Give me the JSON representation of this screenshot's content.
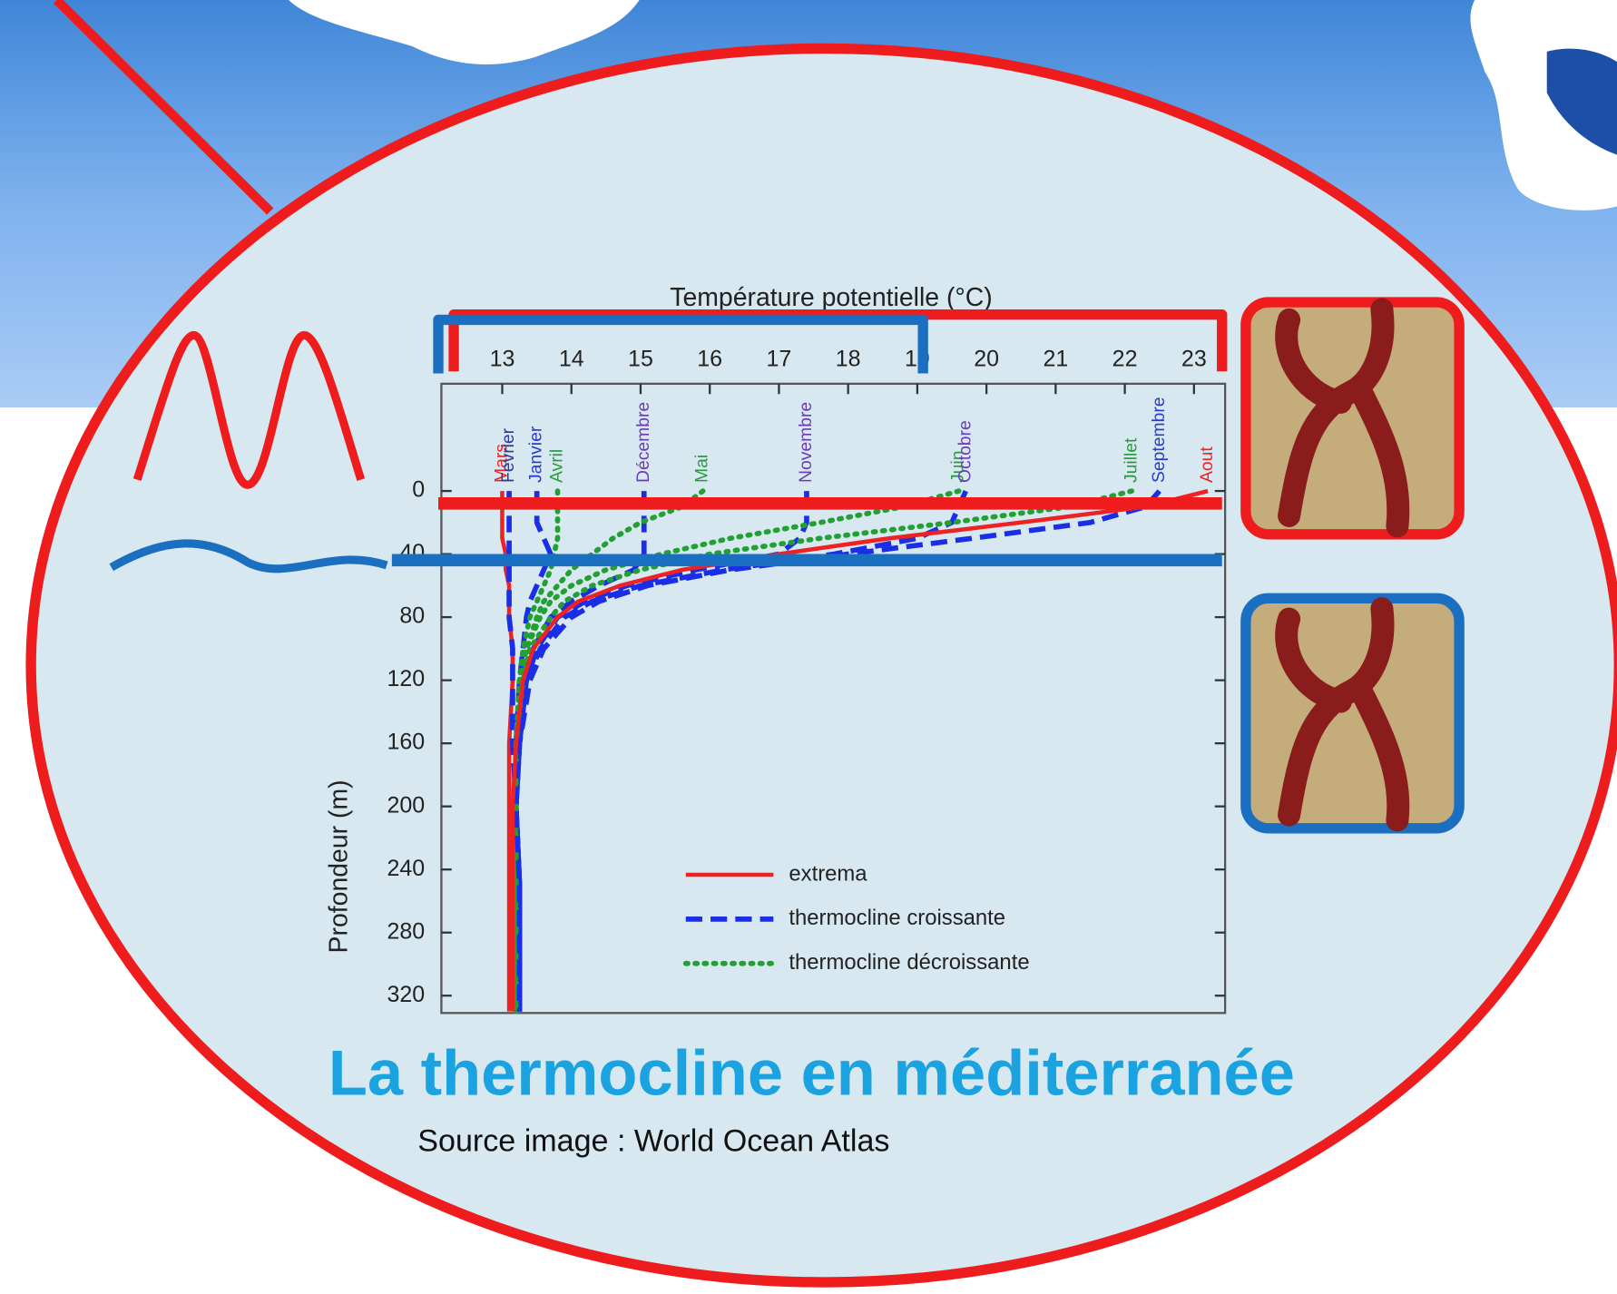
{
  "chart_data": {
    "type": "line",
    "title": "La thermocline en méditerranée",
    "source": "Source image : World Ocean Atlas",
    "x_label": "Température potentielle (°C)",
    "y_label": "Profondeur (m)",
    "xlim": [
      12.12,
      23.45
    ],
    "xticks": [
      13,
      14,
      15,
      16,
      17,
      18,
      19,
      20,
      21,
      22,
      23
    ],
    "ylim": [
      -68,
      331
    ],
    "yticks": [
      0,
      40,
      80,
      120,
      160,
      200,
      240,
      280,
      320
    ],
    "y_inverted": true,
    "depths": [
      0,
      10,
      20,
      30,
      40,
      50,
      60,
      70,
      80,
      100,
      120,
      160,
      200,
      250,
      330
    ],
    "legend": [
      {
        "name": "extrema",
        "color": "#ee2222",
        "dash": "none"
      },
      {
        "name": "thermocline croissante",
        "color": "#1a2ee8",
        "dash": "16,8"
      },
      {
        "name": "thermocline décroissante",
        "color": "#22a033",
        "dash": "2,7"
      }
    ],
    "series": [
      {
        "name": "Mars",
        "group": 0,
        "label_color": "#ee2222",
        "values": [
          13.0,
          13.0,
          13.0,
          13.0,
          13.05,
          13.05,
          13.1,
          13.1,
          13.1,
          13.15,
          13.15,
          13.1,
          13.1,
          13.1,
          13.1
        ]
      },
      {
        "name": "Fevrier",
        "group": 1,
        "label_color": "#2a3a9a",
        "values": [
          13.1,
          13.1,
          13.1,
          13.1,
          13.1,
          13.1,
          13.1,
          13.1,
          13.1,
          13.15,
          13.15,
          13.15,
          13.2,
          13.2,
          13.2
        ]
      },
      {
        "name": "Janvier",
        "group": 1,
        "label_color": "#2a3acc",
        "values": [
          13.5,
          13.5,
          13.5,
          13.6,
          13.7,
          13.6,
          13.5,
          13.4,
          13.35,
          13.3,
          13.25,
          13.2,
          13.2,
          13.25,
          13.25
        ]
      },
      {
        "name": "Avril",
        "group": 2,
        "label_color": "#2a9a40",
        "values": [
          13.8,
          13.8,
          13.8,
          13.8,
          13.75,
          13.7,
          13.6,
          13.5,
          13.4,
          13.3,
          13.25,
          13.2,
          13.2,
          13.2,
          13.2
        ]
      },
      {
        "name": "Décembre",
        "group": 1,
        "label_color": "#6a3ab8",
        "values": [
          15.05,
          15.05,
          15.05,
          15.05,
          15.05,
          14.9,
          14.4,
          14.0,
          13.7,
          13.45,
          13.3,
          13.2,
          13.2,
          13.25,
          13.25
        ]
      },
      {
        "name": "Mai",
        "group": 2,
        "label_color": "#2a9a40",
        "values": [
          15.9,
          15.6,
          15.0,
          14.6,
          14.3,
          14.0,
          13.8,
          13.6,
          13.5,
          13.35,
          13.25,
          13.2,
          13.2,
          13.2,
          13.2
        ]
      },
      {
        "name": "Novembre",
        "group": 1,
        "label_color": "#6a3ab8",
        "values": [
          17.4,
          17.4,
          17.4,
          17.3,
          17.0,
          15.8,
          14.8,
          14.2,
          13.8,
          13.5,
          13.35,
          13.25,
          13.2,
          13.25,
          13.25
        ]
      },
      {
        "name": "Juin",
        "group": 2,
        "label_color": "#2a9a40",
        "values": [
          19.6,
          18.8,
          17.6,
          16.3,
          15.3,
          14.5,
          14.0,
          13.7,
          13.55,
          13.35,
          13.25,
          13.2,
          13.2,
          13.2,
          13.2
        ]
      },
      {
        "name": "Octobre",
        "group": 1,
        "label_color": "#6a3ab8",
        "values": [
          19.7,
          19.6,
          19.5,
          19.0,
          17.8,
          16.2,
          15.0,
          14.3,
          13.9,
          13.55,
          13.35,
          13.25,
          13.2,
          13.25,
          13.25
        ]
      },
      {
        "name": "Juillet",
        "group": 2,
        "label_color": "#2a9a40",
        "values": [
          22.1,
          21.2,
          19.5,
          17.6,
          16.0,
          15.0,
          14.3,
          13.9,
          13.7,
          13.4,
          13.3,
          13.2,
          13.2,
          13.2,
          13.2
        ]
      },
      {
        "name": "Septembre",
        "group": 1,
        "label_color": "#2a3acc",
        "values": [
          22.5,
          22.3,
          21.5,
          19.8,
          18.0,
          16.3,
          15.1,
          14.4,
          14.0,
          13.6,
          13.4,
          13.25,
          13.2,
          13.25,
          13.25
        ]
      },
      {
        "name": "Aout",
        "group": 0,
        "label_color": "#ee2222",
        "values": [
          23.2,
          22.3,
          20.5,
          18.6,
          17.0,
          15.6,
          14.7,
          14.1,
          13.8,
          13.45,
          13.3,
          13.2,
          13.15,
          13.15,
          13.15
        ]
      }
    ]
  }
}
